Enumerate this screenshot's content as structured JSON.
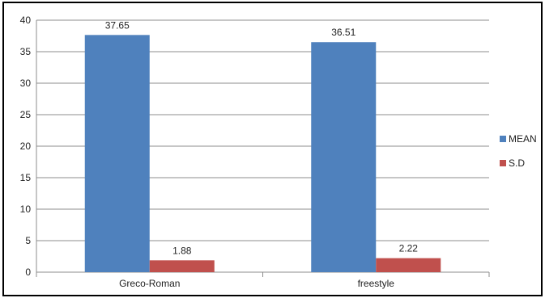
{
  "chart_data": {
    "type": "bar",
    "categories": [
      "Greco-Roman",
      "freestyle"
    ],
    "series": [
      {
        "name": "MEAN",
        "values": [
          37.65,
          36.51
        ],
        "color": "#4f81bd"
      },
      {
        "name": "S.D",
        "values": [
          1.88,
          2.22
        ],
        "color": "#c0504d"
      }
    ],
    "data_labels": [
      [
        "37.65",
        "36.51"
      ],
      [
        "1.88",
        "2.22"
      ]
    ],
    "yticks": [
      0,
      5,
      10,
      15,
      20,
      25,
      30,
      35,
      40
    ],
    "ylim": [
      0,
      40
    ],
    "grid": true,
    "legend_position": "right",
    "title": "",
    "xlabel": "",
    "ylabel": ""
  }
}
